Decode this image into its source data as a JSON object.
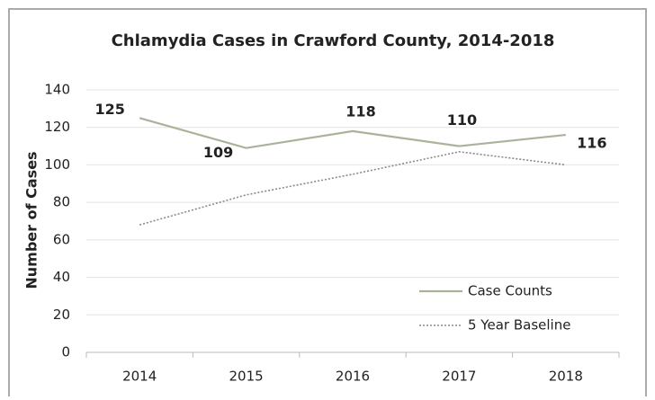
{
  "chart_data": {
    "type": "line",
    "title": "Chlamydia Cases in Crawford County, 2014-2018",
    "y_label": "Number of Cases",
    "categories": [
      "2014",
      "2015",
      "2016",
      "2017",
      "2018"
    ],
    "series": [
      {
        "name": "Case Counts",
        "color": "#a8b39a",
        "style": "solid",
        "data_labels": true,
        "values": [
          125,
          109,
          118,
          110,
          116
        ]
      },
      {
        "name": "5 Year Baseline",
        "color": "#8a8a8a",
        "style": "dotted",
        "data_labels": false,
        "values": [
          68,
          84,
          95,
          107,
          100
        ]
      }
    ],
    "ylim": [
      0,
      140
    ],
    "yticks": [
      0,
      20,
      40,
      60,
      80,
      100,
      120,
      140
    ],
    "grid": true,
    "legend": "lower right"
  }
}
